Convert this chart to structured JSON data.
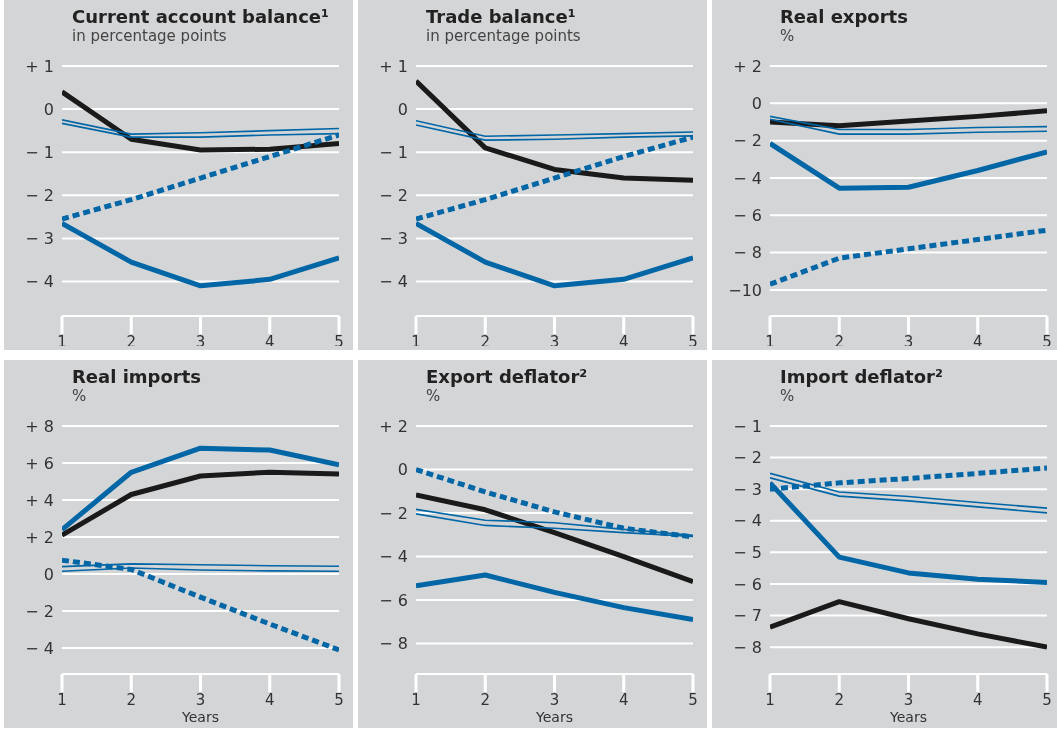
{
  "chart_data": [
    {
      "type": "line",
      "title": "Current account balance¹",
      "subtitle": "in percentage points",
      "x": [
        1,
        2,
        3,
        4,
        5
      ],
      "xlim": [
        1,
        5
      ],
      "xticks": [
        1,
        2,
        3,
        4,
        5
      ],
      "ylim": [
        -4.8,
        1
      ],
      "yticks": [
        {
          "value": 1,
          "label": "+ 1"
        },
        {
          "value": 0,
          "label": "0"
        },
        {
          "value": -1,
          "label": "− 1"
        },
        {
          "value": -2,
          "label": "− 2"
        },
        {
          "value": -3,
          "label": "− 3"
        },
        {
          "value": -4,
          "label": "− 4"
        }
      ],
      "grid": "y",
      "series": [
        {
          "color": "#1a1a1a",
          "values": [
            0.4,
            -0.7,
            -0.95,
            -0.93,
            -0.8
          ]
        },
        {
          "color": "#0066a6",
          "values": [
            -2.65,
            -3.55,
            -4.1,
            -3.95,
            -3.45
          ]
        },
        {
          "color": "#0066a6",
          "line_style": "dashed",
          "values": [
            -2.55,
            -2.1,
            -1.6,
            -1.1,
            -0.6
          ]
        },
        {
          "color": "#0066a6",
          "values": [
            -0.25,
            -0.58,
            -0.55,
            -0.5,
            -0.45
          ]
        },
        {
          "color": "#0066a6",
          "values": [
            -0.33,
            -0.65,
            -0.65,
            -0.6,
            -0.57
          ]
        }
      ]
    },
    {
      "type": "line",
      "title": "Trade balance¹",
      "subtitle": "in percentage points",
      "x": [
        1,
        2,
        3,
        4,
        5
      ],
      "xlim": [
        1,
        5
      ],
      "xticks": [
        1,
        2,
        3,
        4,
        5
      ],
      "ylim": [
        -4.8,
        1
      ],
      "yticks": [
        {
          "value": 1,
          "label": "+ 1"
        },
        {
          "value": 0,
          "label": "0"
        },
        {
          "value": -1,
          "label": "− 1"
        },
        {
          "value": -2,
          "label": "− 2"
        },
        {
          "value": -3,
          "label": "− 3"
        },
        {
          "value": -4,
          "label": "− 4"
        }
      ],
      "grid": "y",
      "series": [
        {
          "color": "#1a1a1a",
          "values": [
            0.65,
            -0.9,
            -1.4,
            -1.6,
            -1.65
          ]
        },
        {
          "color": "#0066a6",
          "values": [
            -2.65,
            -3.55,
            -4.1,
            -3.95,
            -3.45
          ]
        },
        {
          "color": "#0066a6",
          "line_style": "dashed",
          "values": [
            -2.55,
            -2.1,
            -1.6,
            -1.1,
            -0.65
          ]
        },
        {
          "color": "#0066a6",
          "values": [
            -0.27,
            -0.63,
            -0.6,
            -0.57,
            -0.53
          ]
        },
        {
          "color": "#0066a6",
          "values": [
            -0.37,
            -0.72,
            -0.7,
            -0.65,
            -0.62
          ]
        }
      ]
    },
    {
      "type": "line",
      "title": "Real exports",
      "subtitle": "%",
      "x": [
        1,
        2,
        3,
        4,
        5
      ],
      "xlim": [
        1,
        5
      ],
      "xticks": [
        1,
        2,
        3,
        4,
        5
      ],
      "ylim": [
        -11.4,
        2
      ],
      "yticks": [
        {
          "value": 2,
          "label": "+ 2"
        },
        {
          "value": 0,
          "label": "0"
        },
        {
          "value": -2,
          "label": "− 2"
        },
        {
          "value": -4,
          "label": "− 4"
        },
        {
          "value": -6,
          "label": "− 6"
        },
        {
          "value": -8,
          "label": "− 8"
        },
        {
          "value": -10,
          "label": "−10"
        }
      ],
      "grid": "y",
      "series": [
        {
          "color": "#1a1a1a",
          "values": [
            -1.0,
            -1.2,
            -0.95,
            -0.7,
            -0.4
          ]
        },
        {
          "color": "#0066a6",
          "values": [
            -2.15,
            -4.55,
            -4.5,
            -3.6,
            -2.6
          ]
        },
        {
          "color": "#0066a6",
          "line_style": "dashed",
          "values": [
            -9.7,
            -8.3,
            -7.8,
            -7.3,
            -6.8
          ]
        },
        {
          "color": "#0066a6",
          "values": [
            -0.7,
            -1.4,
            -1.4,
            -1.3,
            -1.25
          ]
        },
        {
          "color": "#0066a6",
          "values": [
            -0.85,
            -1.65,
            -1.65,
            -1.55,
            -1.5
          ]
        }
      ]
    },
    {
      "type": "line",
      "title": "Real imports",
      "subtitle": "%",
      "xlabel": "Years",
      "x": [
        1,
        2,
        3,
        4,
        5
      ],
      "xlim": [
        1,
        5
      ],
      "xticks": [
        1,
        2,
        3,
        4,
        5
      ],
      "ylim": [
        -5.4,
        8
      ],
      "yticks": [
        {
          "value": 8,
          "label": "+ 8"
        },
        {
          "value": 6,
          "label": "+ 6"
        },
        {
          "value": 4,
          "label": "+ 4"
        },
        {
          "value": 2,
          "label": "+ 2"
        },
        {
          "value": 0,
          "label": "0"
        },
        {
          "value": -2,
          "label": "− 2"
        },
        {
          "value": -4,
          "label": "− 4"
        }
      ],
      "grid": "y",
      "series": [
        {
          "color": "#1a1a1a",
          "values": [
            2.1,
            4.3,
            5.3,
            5.5,
            5.4
          ]
        },
        {
          "color": "#0066a6",
          "values": [
            2.4,
            5.5,
            6.8,
            6.7,
            5.9
          ]
        },
        {
          "color": "#0066a6",
          "line_style": "dashed",
          "values": [
            0.75,
            0.25,
            -1.25,
            -2.7,
            -4.1
          ]
        },
        {
          "color": "#0066a6",
          "values": [
            0.4,
            0.55,
            0.5,
            0.45,
            0.42
          ]
        },
        {
          "color": "#0066a6",
          "values": [
            0.15,
            0.33,
            0.22,
            0.17,
            0.15
          ]
        }
      ]
    },
    {
      "type": "line",
      "title": "Export deflator²",
      "subtitle": "%",
      "xlabel": "Years",
      "x": [
        1,
        2,
        3,
        4,
        5
      ],
      "xlim": [
        1,
        5
      ],
      "xticks": [
        1,
        2,
        3,
        4,
        5
      ],
      "ylim": [
        -9.4,
        2
      ],
      "yticks": [
        {
          "value": 2,
          "label": "+ 2"
        },
        {
          "value": 0,
          "label": "0"
        },
        {
          "value": -2,
          "label": "− 2"
        },
        {
          "value": -4,
          "label": "− 4"
        },
        {
          "value": -6,
          "label": "− 6"
        },
        {
          "value": -8,
          "label": "− 8"
        }
      ],
      "grid": "y",
      "series": [
        {
          "color": "#1a1a1a",
          "values": [
            -1.17,
            -1.85,
            -2.9,
            -4.0,
            -5.15
          ]
        },
        {
          "color": "#0066a6",
          "values": [
            -5.35,
            -4.85,
            -5.65,
            -6.35,
            -6.9
          ]
        },
        {
          "color": "#0066a6",
          "line_style": "dashed",
          "values": [
            0,
            -1.03,
            -1.95,
            -2.7,
            -3.1
          ]
        },
        {
          "color": "#0066a6",
          "values": [
            -1.83,
            -2.33,
            -2.45,
            -2.75,
            -3.03
          ]
        },
        {
          "color": "#0066a6",
          "values": [
            -2.04,
            -2.57,
            -2.7,
            -2.9,
            -3.08
          ]
        }
      ]
    },
    {
      "type": "line",
      "title": "Import deflator²",
      "subtitle": "%",
      "xlabel": "Years",
      "x": [
        1,
        2,
        3,
        4,
        5
      ],
      "xlim": [
        1,
        5
      ],
      "xticks": [
        1,
        2,
        3,
        4,
        5
      ],
      "ylim": [
        -8.85,
        -1
      ],
      "yticks": [
        {
          "value": -1,
          "label": "− 1"
        },
        {
          "value": -2,
          "label": "− 2"
        },
        {
          "value": -3,
          "label": "− 3"
        },
        {
          "value": -4,
          "label": "− 4"
        },
        {
          "value": -5,
          "label": "− 5"
        },
        {
          "value": -6,
          "label": "− 6"
        },
        {
          "value": -7,
          "label": "− 7"
        },
        {
          "value": -8,
          "label": "− 8"
        }
      ],
      "grid": "y",
      "series": [
        {
          "color": "#1a1a1a",
          "values": [
            -7.37,
            -6.56,
            -7.1,
            -7.58,
            -8.0
          ]
        },
        {
          "color": "#0066a6",
          "values": [
            -2.8,
            -5.15,
            -5.65,
            -5.85,
            -5.95
          ]
        },
        {
          "color": "#0066a6",
          "line_style": "dashed",
          "values": [
            -3.0,
            -2.8,
            -2.66,
            -2.5,
            -2.33
          ]
        },
        {
          "color": "#0066a6",
          "values": [
            -2.5,
            -3.09,
            -3.23,
            -3.42,
            -3.6
          ]
        },
        {
          "color": "#0066a6",
          "values": [
            -2.64,
            -3.22,
            -3.37,
            -3.56,
            -3.75
          ]
        }
      ]
    }
  ]
}
